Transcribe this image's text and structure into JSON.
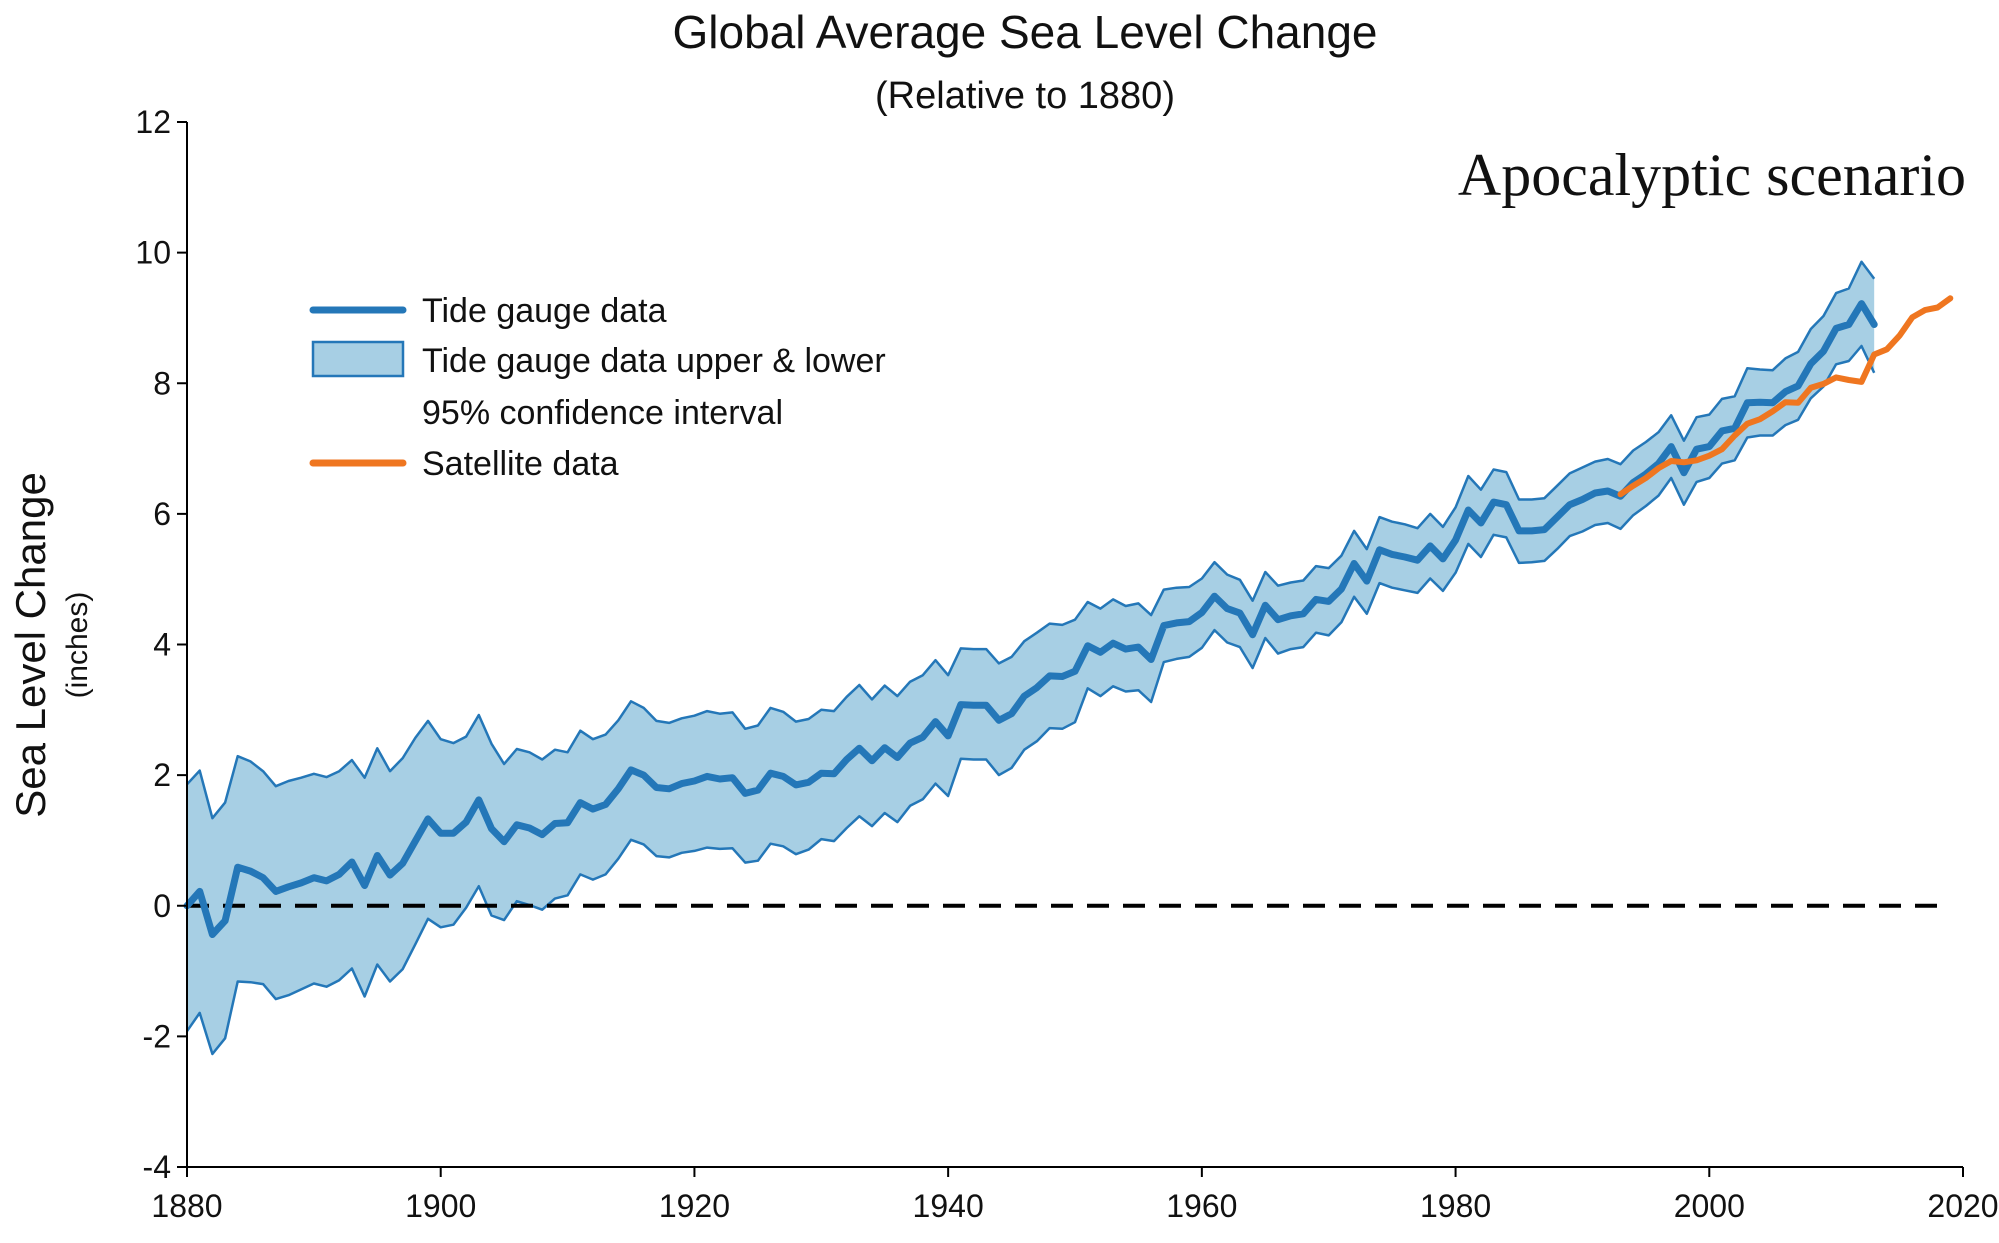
{
  "chart_data": {
    "type": "line",
    "title": "Global Average Sea Level Change",
    "subtitle": "(Relative to 1880)",
    "annotation": "Apocalyptic scenario",
    "ylabel": "Sea Level Change",
    "ylabel_unit": "(inches)",
    "xlabel": "",
    "xlim": [
      1880,
      2020
    ],
    "ylim": [
      -4,
      12
    ],
    "x_ticks": [
      "1880",
      "1900",
      "1920",
      "1940",
      "1960",
      "1980",
      "2000",
      "2020"
    ],
    "y_ticks": [
      "12",
      "10",
      "8",
      "6",
      "4",
      "2",
      "0",
      "-2",
      "-4"
    ],
    "grid": false,
    "legend_position": "upper-left",
    "legend": {
      "tide": "Tide gauge data",
      "band_line1": "Tide gauge data upper & lower",
      "band_line2": "95% confidence interval",
      "satellite": "Satellite data"
    },
    "colors": {
      "tide": "#2477b8",
      "band_fill": "#a7cfe4",
      "satellite": "#ef7620",
      "baseline": "#000000"
    },
    "series": [
      {
        "name": "Tide gauge data",
        "x": [
          1880,
          1881,
          1882,
          1883,
          1884,
          1885,
          1886,
          1887,
          1888,
          1889,
          1890,
          1891,
          1892,
          1893,
          1894,
          1895,
          1896,
          1897,
          1898,
          1899,
          1900,
          1901,
          1902,
          1903,
          1904,
          1905,
          1906,
          1907,
          1908,
          1909,
          1910,
          1911,
          1912,
          1913,
          1914,
          1915,
          1916,
          1917,
          1918,
          1919,
          1920,
          1921,
          1922,
          1923,
          1924,
          1925,
          1926,
          1927,
          1928,
          1929,
          1930,
          1931,
          1932,
          1933,
          1934,
          1935,
          1936,
          1937,
          1938,
          1939,
          1940,
          1941,
          1942,
          1943,
          1944,
          1945,
          1946,
          1947,
          1948,
          1949,
          1950,
          1951,
          1952,
          1953,
          1954,
          1955,
          1956,
          1957,
          1958,
          1959,
          1960,
          1961,
          1962,
          1963,
          1964,
          1965,
          1966,
          1967,
          1968,
          1969,
          1970,
          1971,
          1972,
          1973,
          1974,
          1975,
          1976,
          1977,
          1978,
          1979,
          1980,
          1981,
          1982,
          1983,
          1984,
          1985,
          1986,
          1987,
          1988,
          1989,
          1990,
          1991,
          1992,
          1993,
          1994,
          1995,
          1996,
          1997,
          1998,
          1999,
          2000,
          2001,
          2002,
          2003,
          2004,
          2005,
          2006,
          2007,
          2008,
          2009,
          2010,
          2011,
          2012,
          2013
        ],
        "values": [
          0.0,
          0.22,
          -0.44,
          -0.23,
          0.59,
          0.53,
          0.43,
          0.22,
          0.29,
          0.35,
          0.43,
          0.38,
          0.48,
          0.67,
          0.31,
          0.77,
          0.47,
          0.65,
          0.99,
          1.33,
          1.11,
          1.11,
          1.28,
          1.62,
          1.18,
          0.98,
          1.24,
          1.19,
          1.09,
          1.26,
          1.27,
          1.58,
          1.48,
          1.55,
          1.79,
          2.08,
          2.0,
          1.81,
          1.79,
          1.87,
          1.91,
          1.98,
          1.94,
          1.96,
          1.72,
          1.77,
          2.03,
          1.98,
          1.85,
          1.89,
          2.03,
          2.02,
          2.24,
          2.41,
          2.22,
          2.42,
          2.27,
          2.49,
          2.58,
          2.82,
          2.6,
          3.08,
          3.07,
          3.07,
          2.84,
          2.94,
          3.21,
          3.34,
          3.52,
          3.51,
          3.59,
          3.98,
          3.88,
          4.02,
          3.93,
          3.96,
          3.77,
          4.29,
          4.33,
          4.35,
          4.49,
          4.74,
          4.55,
          4.48,
          4.15,
          4.6,
          4.38,
          4.44,
          4.47,
          4.69,
          4.66,
          4.85,
          5.24,
          4.97,
          5.45,
          5.38,
          5.34,
          5.29,
          5.51,
          5.31,
          5.6,
          6.06,
          5.86,
          6.18,
          6.14,
          5.74,
          5.74,
          5.76,
          5.95,
          6.14,
          6.22,
          6.32,
          6.35,
          6.27,
          6.48,
          6.61,
          6.77,
          7.03,
          6.63,
          6.99,
          7.03,
          7.27,
          7.31,
          7.7,
          7.71,
          7.7,
          7.87,
          7.96,
          8.3,
          8.49,
          8.84,
          8.9,
          9.22,
          8.9
        ]
      },
      {
        "name": "Tide gauge data upper & lower 95% confidence interval",
        "upper": [
          1.86,
          2.07,
          1.34,
          1.58,
          2.29,
          2.21,
          2.06,
          1.83,
          1.91,
          1.96,
          2.02,
          1.97,
          2.06,
          2.23,
          1.96,
          2.41,
          2.06,
          2.26,
          2.57,
          2.83,
          2.55,
          2.49,
          2.59,
          2.92,
          2.48,
          2.17,
          2.4,
          2.35,
          2.24,
          2.39,
          2.35,
          2.68,
          2.55,
          2.62,
          2.84,
          3.13,
          3.03,
          2.83,
          2.8,
          2.87,
          2.91,
          2.98,
          2.94,
          2.96,
          2.71,
          2.76,
          3.03,
          2.97,
          2.82,
          2.86,
          3.0,
          2.98,
          3.2,
          3.38,
          3.16,
          3.37,
          3.21,
          3.43,
          3.53,
          3.76,
          3.53,
          3.94,
          3.93,
          3.93,
          3.71,
          3.81,
          4.05,
          4.18,
          4.32,
          4.3,
          4.38,
          4.65,
          4.55,
          4.69,
          4.59,
          4.63,
          4.45,
          4.84,
          4.87,
          4.88,
          5.01,
          5.26,
          5.07,
          4.99,
          4.67,
          5.11,
          4.9,
          4.95,
          4.98,
          5.2,
          5.17,
          5.36,
          5.74,
          5.46,
          5.95,
          5.88,
          5.84,
          5.78,
          6.0,
          5.8,
          6.1,
          6.58,
          6.37,
          6.68,
          6.64,
          6.22,
          6.22,
          6.24,
          6.43,
          6.62,
          6.71,
          6.8,
          6.84,
          6.76,
          6.97,
          7.1,
          7.25,
          7.51,
          7.12,
          7.48,
          7.52,
          7.76,
          7.8,
          8.23,
          8.21,
          8.2,
          8.38,
          8.48,
          8.83,
          9.03,
          9.38,
          9.45,
          9.86,
          9.6
        ],
        "lower": [
          -1.92,
          -1.64,
          -2.27,
          -2.03,
          -1.16,
          -1.17,
          -1.2,
          -1.43,
          -1.37,
          -1.28,
          -1.19,
          -1.24,
          -1.14,
          -0.96,
          -1.39,
          -0.9,
          -1.16,
          -0.97,
          -0.59,
          -0.2,
          -0.33,
          -0.29,
          -0.03,
          0.3,
          -0.15,
          -0.22,
          0.07,
          0.01,
          -0.06,
          0.11,
          0.16,
          0.48,
          0.4,
          0.48,
          0.72,
          1.01,
          0.94,
          0.76,
          0.74,
          0.81,
          0.84,
          0.89,
          0.87,
          0.88,
          0.66,
          0.69,
          0.95,
          0.91,
          0.79,
          0.86,
          1.02,
          0.99,
          1.19,
          1.37,
          1.22,
          1.42,
          1.28,
          1.53,
          1.63,
          1.87,
          1.68,
          2.25,
          2.24,
          2.24,
          2.0,
          2.11,
          2.39,
          2.52,
          2.72,
          2.71,
          2.81,
          3.33,
          3.21,
          3.36,
          3.28,
          3.3,
          3.12,
          3.73,
          3.78,
          3.81,
          3.95,
          4.22,
          4.03,
          3.96,
          3.64,
          4.1,
          3.86,
          3.93,
          3.96,
          4.18,
          4.14,
          4.34,
          4.73,
          4.47,
          4.94,
          4.87,
          4.83,
          4.79,
          5.01,
          4.82,
          5.1,
          5.54,
          5.34,
          5.68,
          5.64,
          5.25,
          5.26,
          5.28,
          5.46,
          5.66,
          5.73,
          5.83,
          5.86,
          5.77,
          5.98,
          6.12,
          6.28,
          6.55,
          6.14,
          6.49,
          6.55,
          6.77,
          6.82,
          7.17,
          7.2,
          7.2,
          7.36,
          7.44,
          7.77,
          7.95,
          8.29,
          8.34,
          8.57,
          8.16
        ]
      },
      {
        "name": "Satellite data",
        "x": [
          1993,
          1994,
          1995,
          1996,
          1997,
          1998,
          1999,
          2000,
          2001,
          2002,
          2003,
          2004,
          2005,
          2006,
          2007,
          2008,
          2009,
          2010,
          2011,
          2012,
          2013,
          2014,
          2015,
          2016,
          2017,
          2018,
          2019
        ],
        "values": [
          6.3,
          6.43,
          6.55,
          6.7,
          6.81,
          6.79,
          6.82,
          6.89,
          6.99,
          7.2,
          7.38,
          7.45,
          7.57,
          7.71,
          7.7,
          7.93,
          7.99,
          8.09,
          8.05,
          8.02,
          8.44,
          8.52,
          8.73,
          9.01,
          9.12,
          9.16,
          9.3
        ]
      },
      {
        "name": "Zero baseline",
        "x": [
          1880,
          2019
        ],
        "values": [
          0,
          0
        ]
      }
    ]
  }
}
